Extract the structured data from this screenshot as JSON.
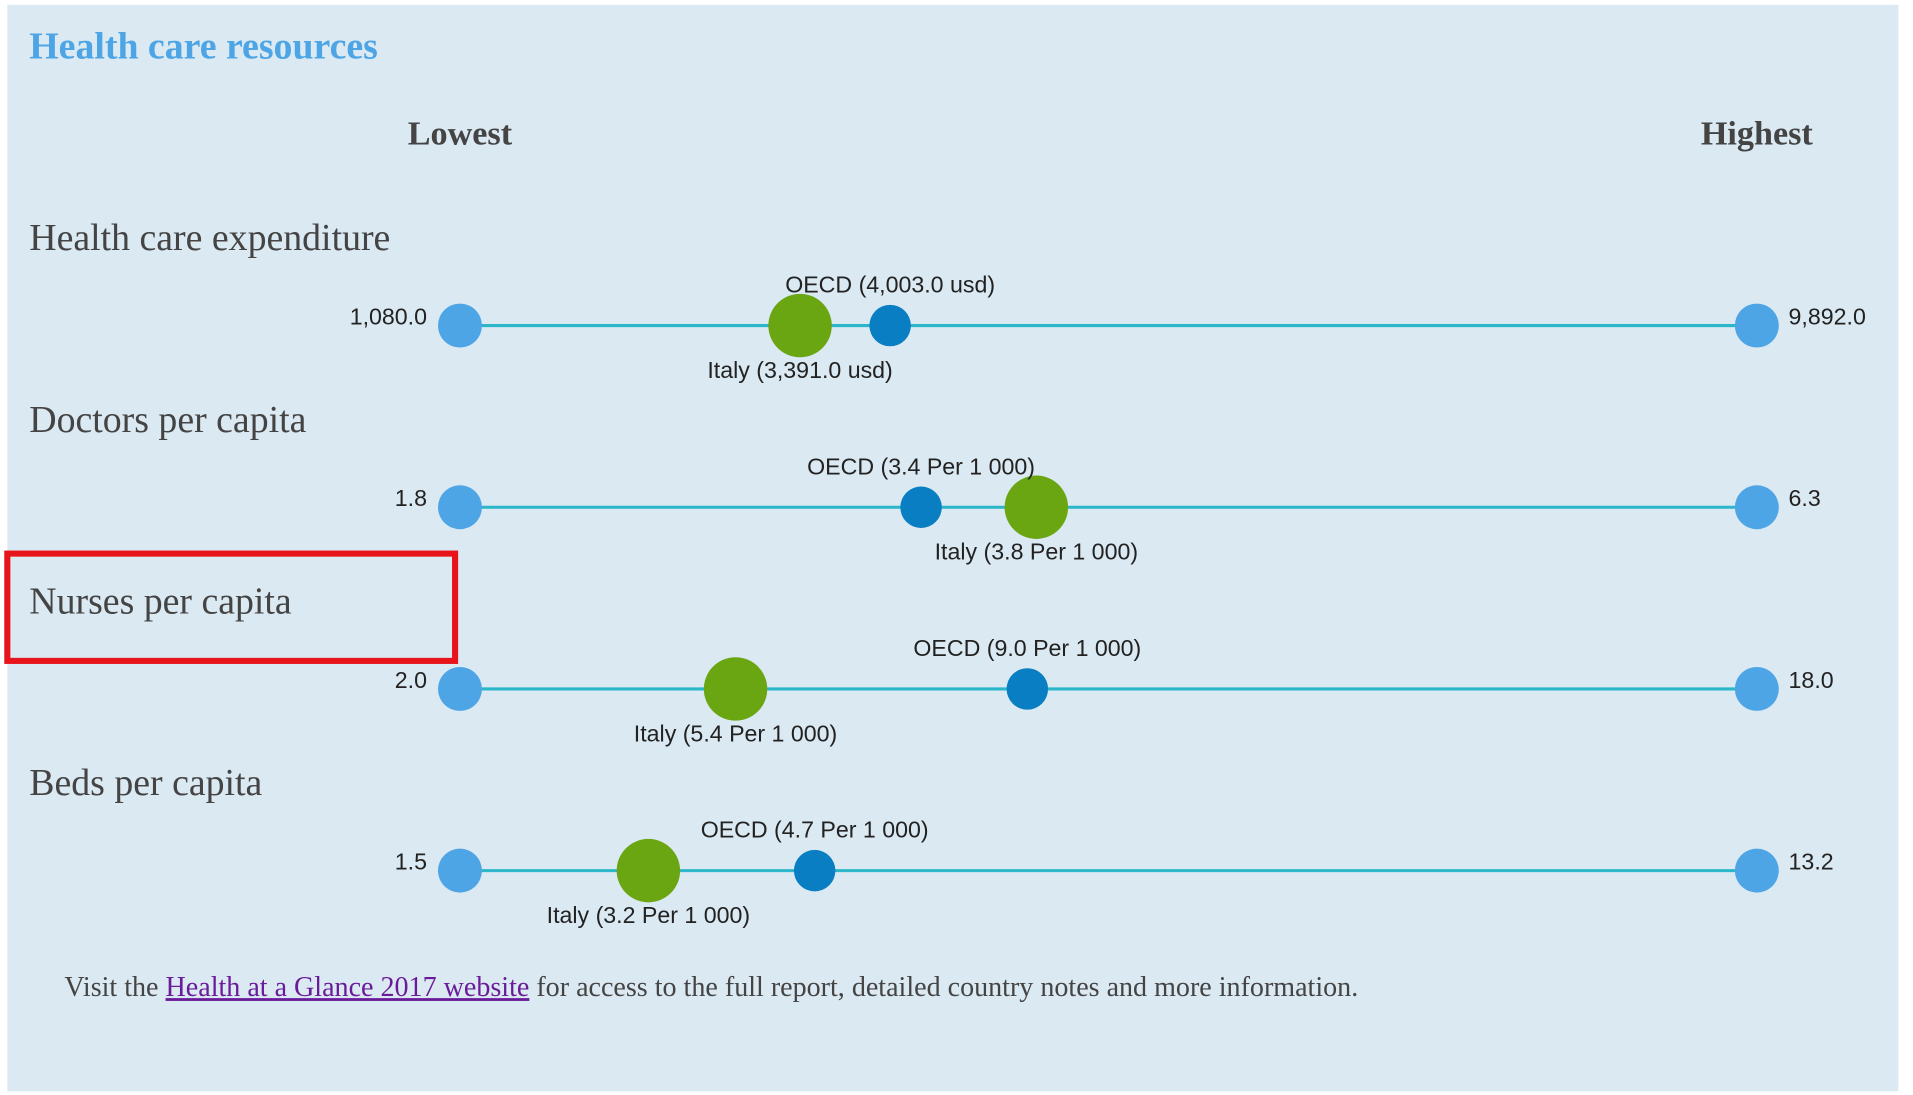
{
  "title": "Health care resources",
  "columns": {
    "lowest": "Lowest",
    "highest": "Highest"
  },
  "rows": [
    {
      "name": "Health care expenditure",
      "min": {
        "value": 1080.0,
        "label": "1,080.0"
      },
      "max": {
        "value": 9892.0,
        "label": "9,892.0"
      },
      "oecd": {
        "value": 4003.0,
        "label": "OECD (4,003.0 usd)"
      },
      "italy": {
        "value": 3391.0,
        "label": "Italy (3,391.0 usd)"
      }
    },
    {
      "name": "Doctors per capita",
      "min": {
        "value": 1.8,
        "label": "1.8"
      },
      "max": {
        "value": 6.3,
        "label": "6.3"
      },
      "oecd": {
        "value": 3.4,
        "label": "OECD (3.4 Per 1 000)"
      },
      "italy": {
        "value": 3.8,
        "label": "Italy (3.8 Per 1 000)"
      }
    },
    {
      "name": "Nurses per capita",
      "min": {
        "value": 2.0,
        "label": "2.0"
      },
      "max": {
        "value": 18.0,
        "label": "18.0"
      },
      "oecd": {
        "value": 9.0,
        "label": "OECD (9.0 Per 1 000)"
      },
      "italy": {
        "value": 5.4,
        "label": "Italy (5.4 Per 1 000)"
      }
    },
    {
      "name": "Beds per capita",
      "min": {
        "value": 1.5,
        "label": "1.5"
      },
      "max": {
        "value": 13.2,
        "label": "13.2"
      },
      "oecd": {
        "value": 4.7,
        "label": "OECD (4.7 Per 1 000)"
      },
      "italy": {
        "value": 3.2,
        "label": "Italy (3.2 Per 1 000)"
      }
    }
  ],
  "footer": {
    "before": "Visit the ",
    "link": "Health at a Glance 2017 website",
    "after": " for access to the full report, detailed country notes and more information."
  }
}
